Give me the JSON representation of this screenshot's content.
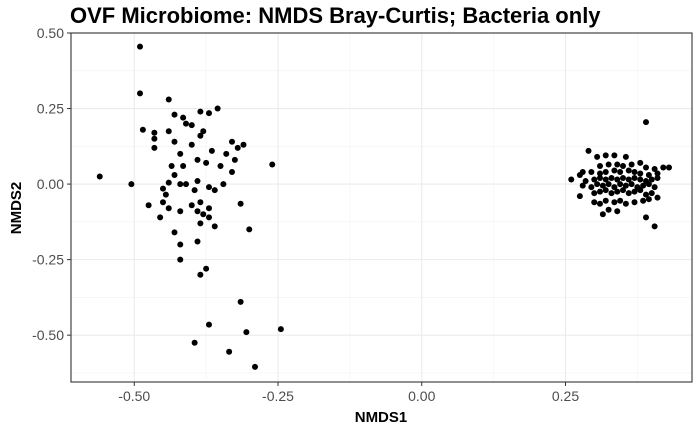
{
  "chart_data": {
    "type": "scatter",
    "title": "OVF Microbiome: NMDS Bray-Curtis; Bacteria only",
    "xlabel": "NMDS1",
    "ylabel": "NMDS2",
    "xlim": [
      -0.61,
      0.47
    ],
    "ylim": [
      -0.655,
      0.5
    ],
    "x_ticks": [
      -0.5,
      -0.25,
      0.0,
      0.25
    ],
    "x_tick_labels": [
      "-0.50",
      "-0.25",
      "0.00",
      "0.25"
    ],
    "y_ticks": [
      0.5,
      0.25,
      0.0,
      -0.25,
      -0.5
    ],
    "y_tick_labels": [
      "0.50",
      "0.25",
      "0.00",
      "-0.25",
      "-0.50"
    ],
    "grid": true,
    "point_color": "#000000",
    "series": [
      {
        "points": [
          [
            -0.49,
            0.455
          ],
          [
            -0.49,
            0.3
          ],
          [
            -0.485,
            0.18
          ],
          [
            -0.56,
            0.025
          ],
          [
            -0.505,
            0.0
          ],
          [
            -0.475,
            -0.07
          ],
          [
            -0.44,
            0.28
          ],
          [
            -0.43,
            0.23
          ],
          [
            -0.465,
            0.17
          ],
          [
            -0.465,
            0.15
          ],
          [
            -0.465,
            0.12
          ],
          [
            -0.44,
            0.175
          ],
          [
            -0.43,
            0.14
          ],
          [
            -0.42,
            0.1
          ],
          [
            -0.435,
            0.06
          ],
          [
            -0.415,
            0.22
          ],
          [
            -0.41,
            0.2
          ],
          [
            -0.4,
            0.195
          ],
          [
            -0.385,
            0.24
          ],
          [
            -0.37,
            0.235
          ],
          [
            -0.355,
            0.25
          ],
          [
            -0.38,
            0.175
          ],
          [
            -0.385,
            0.16
          ],
          [
            -0.365,
            0.11
          ],
          [
            -0.375,
            0.07
          ],
          [
            -0.39,
            0.08
          ],
          [
            -0.4,
            0.13
          ],
          [
            -0.415,
            0.06
          ],
          [
            -0.43,
            0.03
          ],
          [
            -0.44,
            0.005
          ],
          [
            -0.45,
            -0.015
          ],
          [
            -0.42,
            0.0
          ],
          [
            -0.41,
            0.0
          ],
          [
            -0.39,
            0.01
          ],
          [
            -0.395,
            -0.02
          ],
          [
            -0.37,
            -0.01
          ],
          [
            -0.385,
            -0.06
          ],
          [
            -0.36,
            -0.02
          ],
          [
            -0.35,
            0.06
          ],
          [
            -0.34,
            0.1
          ],
          [
            -0.33,
            0.14
          ],
          [
            -0.32,
            0.12
          ],
          [
            -0.325,
            0.08
          ],
          [
            -0.31,
            0.13
          ],
          [
            -0.33,
            0.04
          ],
          [
            -0.345,
            0.0
          ],
          [
            -0.445,
            -0.035
          ],
          [
            -0.45,
            -0.06
          ],
          [
            -0.455,
            -0.11
          ],
          [
            -0.44,
            -0.08
          ],
          [
            -0.43,
            -0.16
          ],
          [
            -0.42,
            -0.2
          ],
          [
            -0.42,
            -0.25
          ],
          [
            -0.42,
            -0.09
          ],
          [
            -0.4,
            -0.07
          ],
          [
            -0.39,
            -0.09
          ],
          [
            -0.38,
            -0.1
          ],
          [
            -0.37,
            -0.11
          ],
          [
            -0.37,
            -0.08
          ],
          [
            -0.385,
            -0.13
          ],
          [
            -0.39,
            -0.19
          ],
          [
            -0.36,
            -0.14
          ],
          [
            -0.375,
            -0.28
          ],
          [
            -0.385,
            -0.3
          ],
          [
            -0.26,
            0.065
          ],
          [
            -0.315,
            -0.065
          ],
          [
            -0.3,
            -0.15
          ],
          [
            -0.315,
            -0.39
          ],
          [
            -0.37,
            -0.465
          ],
          [
            -0.395,
            -0.525
          ],
          [
            -0.305,
            -0.49
          ],
          [
            -0.335,
            -0.555
          ],
          [
            -0.29,
            -0.605
          ],
          [
            -0.245,
            -0.48
          ]
        ]
      },
      {
        "points": [
          [
            0.39,
            0.205
          ],
          [
            0.26,
            0.015
          ],
          [
            0.275,
            0.03
          ],
          [
            0.28,
            0.04
          ],
          [
            0.29,
            0.11
          ],
          [
            0.305,
            0.09
          ],
          [
            0.32,
            0.095
          ],
          [
            0.335,
            0.095
          ],
          [
            0.355,
            0.09
          ],
          [
            0.31,
            0.06
          ],
          [
            0.325,
            0.065
          ],
          [
            0.34,
            0.065
          ],
          [
            0.35,
            0.06
          ],
          [
            0.365,
            0.065
          ],
          [
            0.38,
            0.07
          ],
          [
            0.39,
            0.055
          ],
          [
            0.405,
            0.05
          ],
          [
            0.42,
            0.055
          ],
          [
            0.43,
            0.055
          ],
          [
            0.295,
            0.04
          ],
          [
            0.31,
            0.035
          ],
          [
            0.32,
            0.04
          ],
          [
            0.335,
            0.045
          ],
          [
            0.345,
            0.04
          ],
          [
            0.36,
            0.045
          ],
          [
            0.37,
            0.04
          ],
          [
            0.38,
            0.035
          ],
          [
            0.395,
            0.03
          ],
          [
            0.41,
            0.035
          ],
          [
            0.285,
            0.01
          ],
          [
            0.3,
            0.015
          ],
          [
            0.31,
            0.02
          ],
          [
            0.32,
            0.015
          ],
          [
            0.33,
            0.02
          ],
          [
            0.34,
            0.015
          ],
          [
            0.35,
            0.02
          ],
          [
            0.36,
            0.015
          ],
          [
            0.37,
            0.02
          ],
          [
            0.38,
            0.015
          ],
          [
            0.39,
            0.01
          ],
          [
            0.4,
            0.015
          ],
          [
            0.41,
            0.02
          ],
          [
            0.28,
            -0.005
          ],
          [
            0.295,
            -0.01
          ],
          [
            0.305,
            0.0
          ],
          [
            0.315,
            -0.005
          ],
          [
            0.325,
            0.0
          ],
          [
            0.335,
            -0.01
          ],
          [
            0.345,
            0.0
          ],
          [
            0.355,
            -0.005
          ],
          [
            0.365,
            0.0
          ],
          [
            0.375,
            -0.01
          ],
          [
            0.385,
            -0.005
          ],
          [
            0.395,
            0.0
          ],
          [
            0.405,
            -0.01
          ],
          [
            0.3,
            -0.03
          ],
          [
            0.31,
            -0.025
          ],
          [
            0.32,
            -0.02
          ],
          [
            0.33,
            -0.03
          ],
          [
            0.34,
            -0.025
          ],
          [
            0.35,
            -0.02
          ],
          [
            0.36,
            -0.03
          ],
          [
            0.37,
            -0.025
          ],
          [
            0.38,
            -0.02
          ],
          [
            0.39,
            -0.035
          ],
          [
            0.4,
            -0.03
          ],
          [
            0.41,
            -0.045
          ],
          [
            0.275,
            -0.04
          ],
          [
            0.3,
            -0.06
          ],
          [
            0.31,
            -0.065
          ],
          [
            0.32,
            -0.055
          ],
          [
            0.335,
            -0.06
          ],
          [
            0.345,
            -0.055
          ],
          [
            0.355,
            -0.065
          ],
          [
            0.37,
            -0.06
          ],
          [
            0.385,
            -0.055
          ],
          [
            0.395,
            -0.05
          ],
          [
            0.325,
            -0.085
          ],
          [
            0.315,
            -0.1
          ],
          [
            0.34,
            -0.09
          ],
          [
            0.39,
            -0.11
          ],
          [
            0.405,
            -0.14
          ]
        ]
      }
    ]
  }
}
